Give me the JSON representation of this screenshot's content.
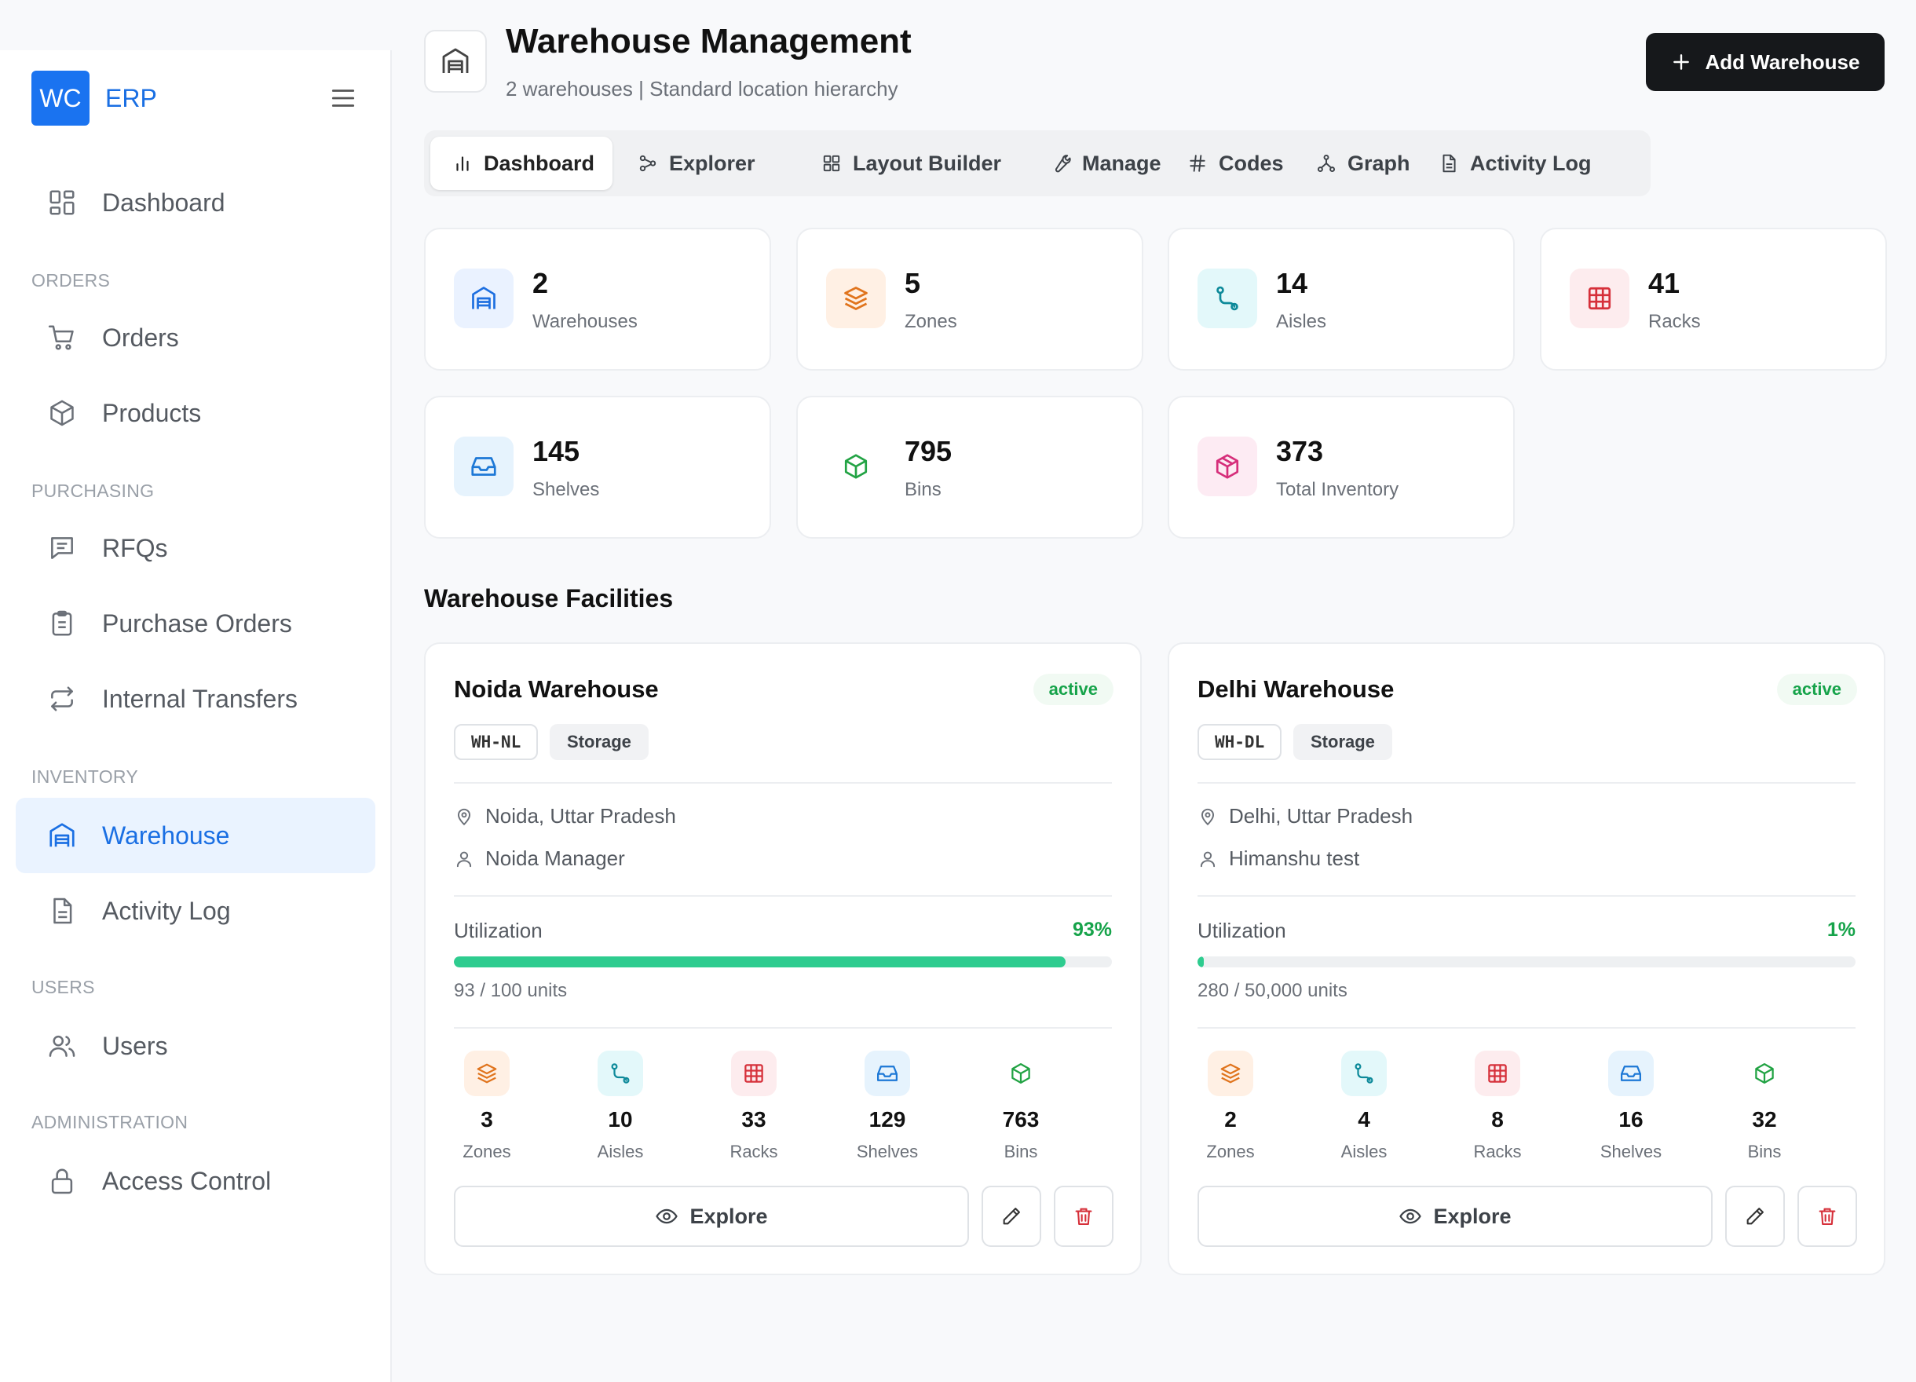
{
  "app": {
    "logo_initials": "WC",
    "logo_text": "ERP"
  },
  "sidebar": {
    "sections": [
      "ORDERS",
      "PURCHASING",
      "INVENTORY",
      "USERS",
      "ADMINISTRATION"
    ],
    "items": [
      {
        "label": "Dashboard",
        "icon": "dashboard-grid-icon"
      },
      {
        "label": "Orders",
        "icon": "cart-icon"
      },
      {
        "label": "Products",
        "icon": "box-icon"
      },
      {
        "label": "RFQs",
        "icon": "message-icon"
      },
      {
        "label": "Purchase Orders",
        "icon": "clipboard-icon"
      },
      {
        "label": "Internal Transfers",
        "icon": "transfer-icon"
      },
      {
        "label": "Warehouse",
        "icon": "warehouse-icon",
        "active": true
      },
      {
        "label": "Activity Log",
        "icon": "document-icon"
      },
      {
        "label": "Users",
        "icon": "users-icon"
      },
      {
        "label": "Access Control",
        "icon": "lock-icon"
      }
    ]
  },
  "header": {
    "title": "Warehouse Management",
    "subtitle": "2 warehouses | Standard location hierarchy",
    "add_button": "Add Warehouse"
  },
  "tabs": [
    {
      "label": "Dashboard",
      "icon": "bar-chart-icon",
      "active": true
    },
    {
      "label": "Explorer",
      "icon": "explorer-icon"
    },
    {
      "label": "Layout Builder",
      "icon": "layout-grid-icon"
    },
    {
      "label": "Manage",
      "icon": "wrench-icon"
    },
    {
      "label": "Codes",
      "icon": "hash-icon"
    },
    {
      "label": "Graph",
      "icon": "graph-icon"
    },
    {
      "label": "Activity Log",
      "icon": "document-icon"
    }
  ],
  "stats": [
    {
      "value": "2",
      "label": "Warehouses",
      "icon": "warehouse-icon",
      "color": "#1d6fe0",
      "bg": "#eaf2ff"
    },
    {
      "value": "5",
      "label": "Zones",
      "icon": "layers-icon",
      "color": "#e0741d",
      "bg": "#fff0e4"
    },
    {
      "value": "14",
      "label": "Aisles",
      "icon": "route-icon",
      "color": "#0e8a9a",
      "bg": "#e3f8fa"
    },
    {
      "value": "41",
      "label": "Racks",
      "icon": "grid-icon",
      "color": "#d6303a",
      "bg": "#fdecee"
    },
    {
      "value": "145",
      "label": "Shelves",
      "icon": "inbox-icon",
      "color": "#1d78d6",
      "bg": "#e6f3fd"
    },
    {
      "value": "795",
      "label": "Bins",
      "icon": "cube-icon",
      "color": "#22a344",
      "bg": "#ffffff"
    },
    {
      "value": "373",
      "label": "Total Inventory",
      "icon": "package-icon",
      "color": "#d62e7a",
      "bg": "#fdebf3"
    }
  ],
  "section_title": "Warehouse Facilities",
  "warehouses": [
    {
      "name": "Noida Warehouse",
      "status": "active",
      "code": "WH-NL",
      "type": "Storage",
      "location": "Noida, Uttar Pradesh",
      "manager": "Noida Manager",
      "utilization_label": "Utilization",
      "utilization_pct": "93%",
      "utilization_fraction": 0.93,
      "units": "93 / 100 units",
      "counts": [
        {
          "value": "3",
          "label": "Zones"
        },
        {
          "value": "10",
          "label": "Aisles"
        },
        {
          "value": "33",
          "label": "Racks"
        },
        {
          "value": "129",
          "label": "Shelves"
        },
        {
          "value": "763",
          "label": "Bins"
        }
      ],
      "explore_label": "Explore"
    },
    {
      "name": "Delhi Warehouse",
      "status": "active",
      "code": "WH-DL",
      "type": "Storage",
      "location": "Delhi, Uttar Pradesh",
      "manager": "Himanshu test",
      "utilization_label": "Utilization",
      "utilization_pct": "1%",
      "utilization_fraction": 0.01,
      "units": "280 / 50,000 units",
      "counts": [
        {
          "value": "2",
          "label": "Zones"
        },
        {
          "value": "4",
          "label": "Aisles"
        },
        {
          "value": "8",
          "label": "Racks"
        },
        {
          "value": "16",
          "label": "Shelves"
        },
        {
          "value": "32",
          "label": "Bins"
        }
      ],
      "explore_label": "Explore"
    }
  ]
}
